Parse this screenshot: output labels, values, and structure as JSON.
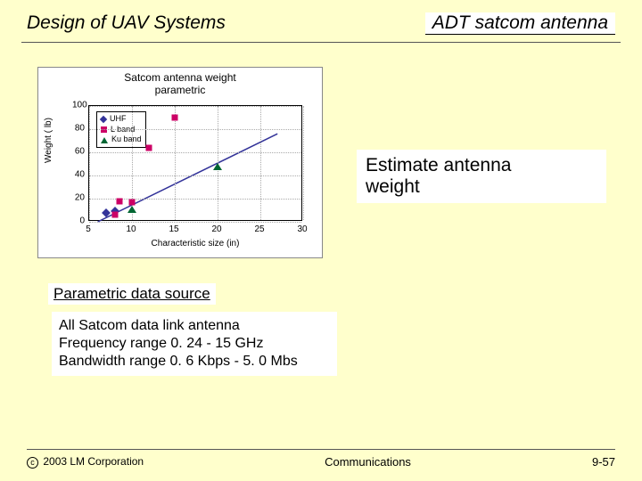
{
  "header": {
    "left": "Design of UAV Systems",
    "right": "ADT satcom antenna"
  },
  "chart": {
    "type": "scatter",
    "title_line1": "Satcom antenna weight",
    "title_line2": "parametric",
    "title_fontsize": 12,
    "xlabel": "Characteristic size (in)",
    "ylabel": "Weight ( lb)",
    "label_fontsize": 10,
    "xlim": [
      5,
      30
    ],
    "ylim": [
      0,
      100
    ],
    "xticks": [
      5,
      10,
      15,
      20,
      25,
      30
    ],
    "yticks": [
      0,
      20,
      40,
      60,
      80,
      100
    ],
    "grid_color": "#aaaaaa",
    "background_color": "#ffffff",
    "series": [
      {
        "name": "UHF",
        "marker": "diamond",
        "color": "#333399",
        "points": [
          [
            7,
            8
          ],
          [
            8,
            9
          ]
        ]
      },
      {
        "name": "L band",
        "marker": "square",
        "color": "#cc0066",
        "points": [
          [
            8,
            6
          ],
          [
            8.5,
            18
          ],
          [
            10,
            17
          ],
          [
            12,
            64
          ],
          [
            15,
            90
          ]
        ]
      },
      {
        "name": "Ku band",
        "marker": "triangle",
        "color": "#006633",
        "points": [
          [
            10,
            11
          ],
          [
            20,
            48
          ]
        ]
      }
    ],
    "trend_line": {
      "x1": 6,
      "y1": 0,
      "x2": 27,
      "y2": 76,
      "color": "#333399"
    }
  },
  "estimate": {
    "line1": "Estimate antenna",
    "line2": "weight"
  },
  "param_label": "Parametric data source",
  "desc": {
    "line1": "All Satcom data link antenna",
    "line2": "Frequency range 0. 24 - 15 GHz",
    "line3": "Bandwidth range 0. 6 Kbps - 5. 0 Mbs"
  },
  "footer": {
    "copyright": "2003 LM Corporation",
    "center": "Communications",
    "right": "9-57"
  }
}
